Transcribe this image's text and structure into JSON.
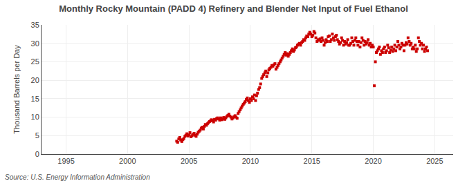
{
  "chart_data": {
    "type": "scatter",
    "title": "Monthly Rocky Mountain (PADD 4) Refinery and Blender Net Input of Fuel Ethanol",
    "ylabel": "Thousand Barrels per Day",
    "annotations": [
      "Source: U.S. Energy Information Administration"
    ],
    "color": "#cc0000",
    "marker": "square",
    "grid": true,
    "xlim": [
      1993.0,
      2026.5
    ],
    "ylim": [
      0,
      35
    ],
    "xticks": [
      1995,
      2000,
      2005,
      2010,
      2015,
      2020,
      2025
    ],
    "yticks": [
      0,
      5,
      10,
      15,
      20,
      25,
      30,
      35
    ],
    "x": [
      2004.0,
      2004.08,
      2004.17,
      2004.25,
      2004.33,
      2004.42,
      2004.5,
      2004.58,
      2004.67,
      2004.75,
      2004.83,
      2004.92,
      2005.0,
      2005.08,
      2005.17,
      2005.25,
      2005.33,
      2005.42,
      2005.5,
      2005.58,
      2005.67,
      2005.75,
      2005.83,
      2005.92,
      2006.0,
      2006.08,
      2006.17,
      2006.25,
      2006.33,
      2006.42,
      2006.5,
      2006.58,
      2006.67,
      2006.75,
      2006.83,
      2006.92,
      2007.0,
      2007.08,
      2007.17,
      2007.25,
      2007.33,
      2007.42,
      2007.5,
      2007.58,
      2007.67,
      2007.75,
      2007.83,
      2007.92,
      2008.0,
      2008.08,
      2008.17,
      2008.25,
      2008.33,
      2008.42,
      2008.5,
      2008.58,
      2008.67,
      2008.75,
      2008.83,
      2008.92,
      2009.0,
      2009.08,
      2009.17,
      2009.25,
      2009.33,
      2009.42,
      2009.5,
      2009.58,
      2009.67,
      2009.75,
      2009.83,
      2009.92,
      2010.0,
      2010.08,
      2010.17,
      2010.25,
      2010.33,
      2010.42,
      2010.5,
      2010.58,
      2010.67,
      2010.75,
      2010.83,
      2010.92,
      2011.0,
      2011.08,
      2011.17,
      2011.25,
      2011.33,
      2011.42,
      2011.5,
      2011.58,
      2011.67,
      2011.75,
      2011.83,
      2011.92,
      2012.0,
      2012.08,
      2012.17,
      2012.25,
      2012.33,
      2012.42,
      2012.5,
      2012.58,
      2012.67,
      2012.75,
      2012.83,
      2012.92,
      2013.0,
      2013.08,
      2013.17,
      2013.25,
      2013.33,
      2013.42,
      2013.5,
      2013.58,
      2013.67,
      2013.75,
      2013.83,
      2013.92,
      2014.0,
      2014.08,
      2014.17,
      2014.25,
      2014.33,
      2014.42,
      2014.5,
      2014.58,
      2014.67,
      2014.75,
      2014.83,
      2014.92,
      2015.0,
      2015.08,
      2015.17,
      2015.25,
      2015.33,
      2015.42,
      2015.5,
      2015.58,
      2015.67,
      2015.75,
      2015.83,
      2015.92,
      2016.0,
      2016.08,
      2016.17,
      2016.25,
      2016.33,
      2016.42,
      2016.5,
      2016.58,
      2016.67,
      2016.75,
      2016.83,
      2016.92,
      2017.0,
      2017.08,
      2017.17,
      2017.25,
      2017.33,
      2017.42,
      2017.5,
      2017.58,
      2017.67,
      2017.75,
      2017.83,
      2017.92,
      2018.0,
      2018.08,
      2018.17,
      2018.25,
      2018.33,
      2018.42,
      2018.5,
      2018.58,
      2018.67,
      2018.75,
      2018.83,
      2018.92,
      2019.0,
      2019.08,
      2019.17,
      2019.25,
      2019.33,
      2019.42,
      2019.5,
      2019.58,
      2019.67,
      2019.75,
      2019.83,
      2019.92,
      2020.0,
      2020.08,
      2020.17,
      2020.25,
      2020.33,
      2020.42,
      2020.5,
      2020.58,
      2020.67,
      2020.75,
      2020.83,
      2020.92,
      2021.0,
      2021.08,
      2021.17,
      2021.25,
      2021.33,
      2021.42,
      2021.5,
      2021.58,
      2021.67,
      2021.75,
      2021.83,
      2021.92,
      2022.0,
      2022.08,
      2022.17,
      2022.25,
      2022.33,
      2022.42,
      2022.5,
      2022.58,
      2022.67,
      2022.75,
      2022.83,
      2022.92,
      2023.0,
      2023.08,
      2023.17,
      2023.25,
      2023.33,
      2023.42,
      2023.5,
      2023.58,
      2023.67,
      2023.75,
      2023.83,
      2023.92,
      2024.0,
      2024.08,
      2024.17,
      2024.25,
      2024.33,
      2024.42
    ],
    "values": [
      3.5,
      3.2,
      4.1,
      4.5,
      3.8,
      3.4,
      3.9,
      4.2,
      4.8,
      5.1,
      5.5,
      4.9,
      5.2,
      5.8,
      4.7,
      5.0,
      5.3,
      5.6,
      5.1,
      4.8,
      5.4,
      5.9,
      6.2,
      6.5,
      7.0,
      7.3,
      6.8,
      7.5,
      8.0,
      7.8,
      8.2,
      8.5,
      8.8,
      9.0,
      9.3,
      9.1,
      8.7,
      9.4,
      9.2,
      9.6,
      9.8,
      9.5,
      9.2,
      9.8,
      9.3,
      9.6,
      9.9,
      9.4,
      9.8,
      10.2,
      10.5,
      10.8,
      10.3,
      10.0,
      9.5,
      9.8,
      10.1,
      10.4,
      10.0,
      9.7,
      11.0,
      11.5,
      12.0,
      12.5,
      13.0,
      13.5,
      13.8,
      14.2,
      14.8,
      15.2,
      14.5,
      14.0,
      15.0,
      14.5,
      15.5,
      15.0,
      16.0,
      14.5,
      15.8,
      16.5,
      17.5,
      18.0,
      19.0,
      20.5,
      21.0,
      21.5,
      22.0,
      22.5,
      21.0,
      22.0,
      22.8,
      23.2,
      23.5,
      24.0,
      23.8,
      24.2,
      24.5,
      23.0,
      23.5,
      24.0,
      24.5,
      25.0,
      25.5,
      26.0,
      26.5,
      27.0,
      27.5,
      26.8,
      27.2,
      26.5,
      27.0,
      27.5,
      28.0,
      28.5,
      27.8,
      28.2,
      28.8,
      29.0,
      29.5,
      29.8,
      30.0,
      29.5,
      30.2,
      30.5,
      31.0,
      30.8,
      31.5,
      32.0,
      31.8,
      32.5,
      33.0,
      32.5,
      31.8,
      32.2,
      33.2,
      32.8,
      31.5,
      30.5,
      31.0,
      30.8,
      31.2,
      30.5,
      31.5,
      30.8,
      29.5,
      30.2,
      31.0,
      30.5,
      31.8,
      32.0,
      30.5,
      31.0,
      32.5,
      31.5,
      30.8,
      31.8,
      32.2,
      31.0,
      30.5,
      29.8,
      30.2,
      31.5,
      30.8,
      29.5,
      30.5,
      29.8,
      30.2,
      31.0,
      29.5,
      29.5,
      30.0,
      31.5,
      30.5,
      29.5,
      30.8,
      31.5,
      30.5,
      29.5,
      30.5,
      29.0,
      30.2,
      31.5,
      30.8,
      29.5,
      30.5,
      29.8,
      30.2,
      31.0,
      29.5,
      30.0,
      29.0,
      29.5,
      29.0,
      18.5,
      25.0,
      27.5,
      28.0,
      28.5,
      29.0,
      27.0,
      28.0,
      27.5,
      28.5,
      29.0,
      27.5,
      28.0,
      29.5,
      28.8,
      27.5,
      28.2,
      29.0,
      27.8,
      28.5,
      29.5,
      28.0,
      29.0,
      30.5,
      29.5,
      28.5,
      29.0,
      30.0,
      29.5,
      28.0,
      29.5,
      30.2,
      29.8,
      31.5,
      30.5,
      29.5,
      30.0,
      28.5,
      29.0,
      28.5,
      29.5,
      27.8,
      28.5,
      31.5,
      30.5,
      29.5,
      30.0,
      28.5,
      29.5,
      27.8,
      28.5,
      29.0,
      28.0
    ]
  }
}
